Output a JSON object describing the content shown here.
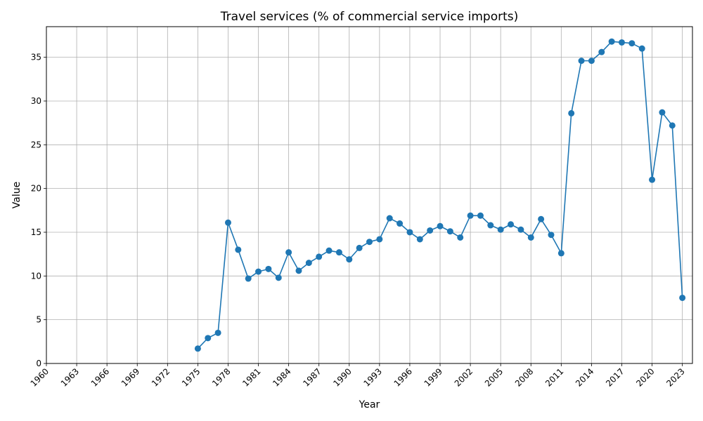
{
  "chart_data": {
    "type": "line",
    "title": "Travel services (% of commercial service imports)",
    "xlabel": "Year",
    "ylabel": "Value",
    "xlim": [
      1960,
      2024
    ],
    "ylim": [
      0,
      38.5
    ],
    "x_ticks": [
      1960,
      1963,
      1966,
      1969,
      1972,
      1975,
      1978,
      1981,
      1984,
      1987,
      1990,
      1993,
      1996,
      1999,
      2002,
      2005,
      2008,
      2011,
      2014,
      2017,
      2020,
      2023
    ],
    "y_ticks": [
      0,
      5,
      10,
      15,
      20,
      25,
      30,
      35
    ],
    "grid": true,
    "marker": "circle",
    "colors": {
      "line": "#1f77b4"
    },
    "series": [
      {
        "x": [
          1975,
          1976,
          1977,
          1978,
          1979,
          1980,
          1981,
          1982,
          1983,
          1984,
          1985,
          1986,
          1987,
          1988,
          1989,
          1990,
          1991,
          1992,
          1993,
          1994,
          1995,
          1996,
          1997,
          1998,
          1999,
          2000,
          2001,
          2002,
          2003,
          2004,
          2005,
          2006,
          2007,
          2008,
          2009,
          2010,
          2011,
          2012,
          2013,
          2014,
          2015,
          2016,
          2017,
          2018,
          2019,
          2020,
          2021,
          2022,
          2023
        ],
        "values": [
          1.7,
          2.9,
          3.5,
          16.1,
          13.0,
          9.7,
          10.5,
          10.8,
          9.8,
          12.7,
          10.6,
          11.5,
          12.2,
          12.9,
          12.7,
          11.9,
          13.2,
          13.9,
          14.2,
          16.6,
          16.0,
          15.0,
          14.2,
          15.2,
          15.7,
          15.1,
          14.4,
          16.9,
          16.9,
          15.8,
          15.3,
          15.9,
          15.3,
          14.4,
          16.5,
          14.7,
          12.6,
          28.6,
          34.6,
          34.6,
          35.6,
          36.8,
          36.7,
          36.6,
          36.0,
          21.0,
          28.7,
          27.2,
          7.5
        ]
      }
    ]
  }
}
